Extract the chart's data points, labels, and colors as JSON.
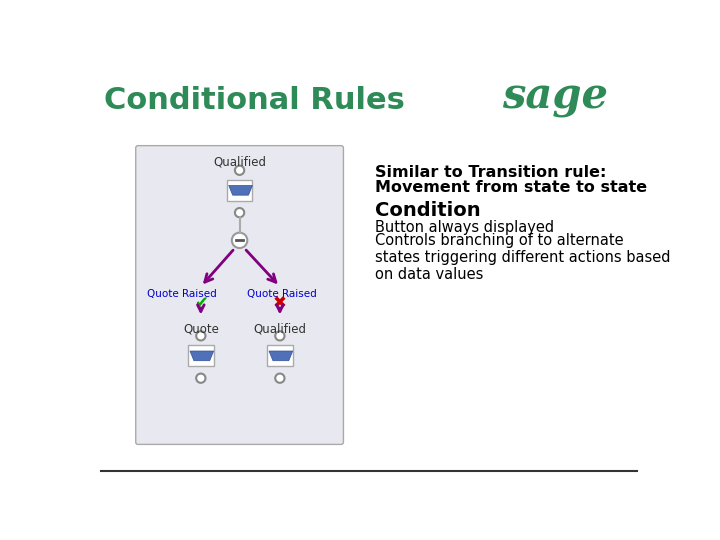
{
  "title": "Conditional Rules",
  "title_color": "#2E8B57",
  "title_fontsize": 22,
  "bg_color": "#ffffff",
  "bottom_line_color": "#333333",
  "sage_color": "#2E8B57",
  "text_block": {
    "bold_line1": "Similar to Transition rule:",
    "bold_line2": "Movement from state to state",
    "heading": "Condition",
    "bullet1": "Button always displayed",
    "bullet2": "Controls branching of to alternate\nstates triggering different actions based\non data values"
  },
  "diagram": {
    "box_color": "#e8e8f0",
    "box_border": "#aaaaaa",
    "state_box_color": "#ffffff",
    "state_box_border": "#aaaaaa",
    "state_fill": "#5070b8",
    "circle_color": "#888888",
    "arrow_color": "#800080",
    "label_color": "#333333",
    "link_color": "#0000cc",
    "green_check": "#00aa00",
    "red_x": "#cc0000"
  }
}
